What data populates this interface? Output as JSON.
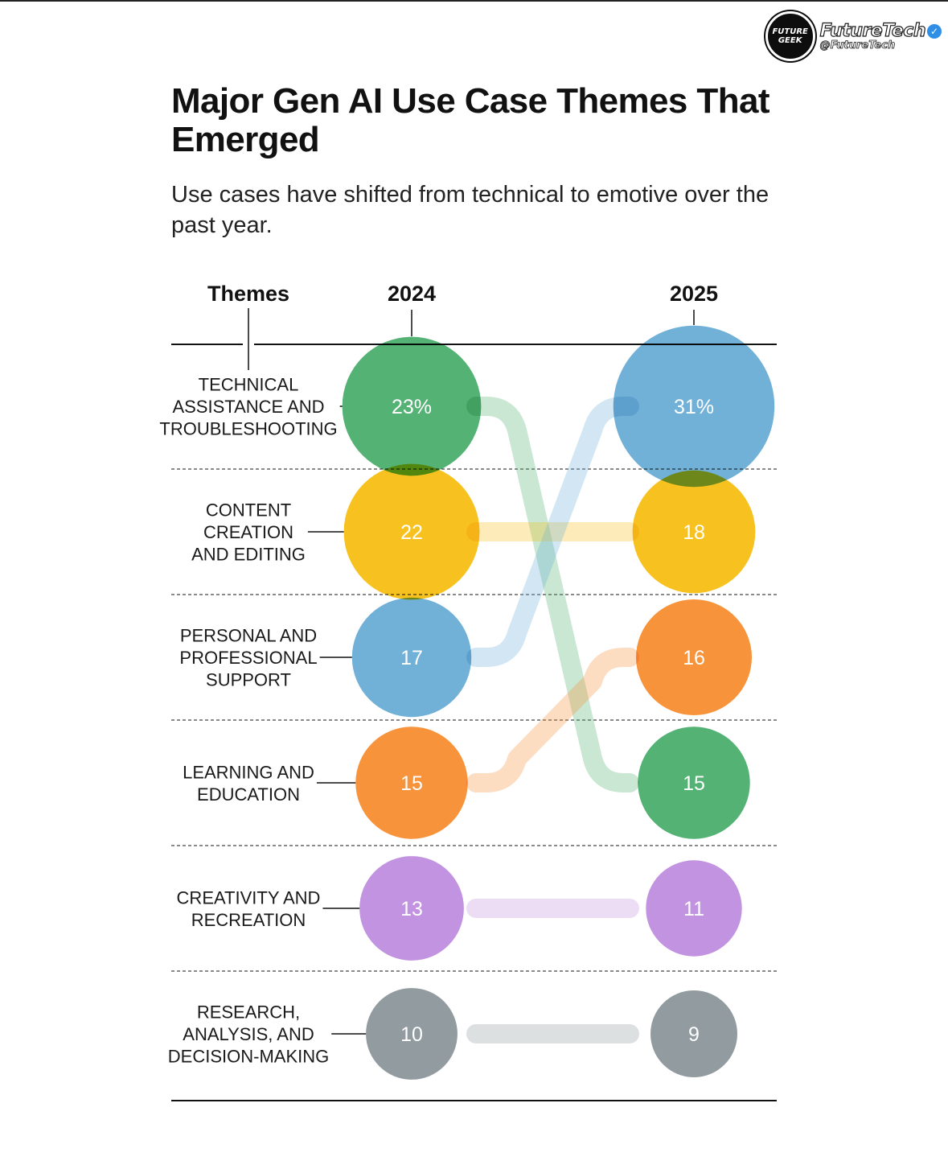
{
  "brand": {
    "logo_text": "FUTURE\nGEEK",
    "name": "FutureTech",
    "handle": "@FutureTech",
    "verified_icon": "check-badge-icon"
  },
  "title": "Major Gen AI Use Case Themes That Emerged",
  "subtitle": "Use cases have shifted from technical to emotive over the past year.",
  "chart_data": {
    "type": "bump",
    "columns": {
      "themes": "Themes",
      "left": "2024",
      "right": "2025"
    },
    "unit": "%",
    "series": [
      {
        "label_lines": [
          "TECHNICAL",
          "ASSISTANCE AND",
          "TROUBLESHOOTING"
        ],
        "color": "#4caf6e",
        "value_2024": 23,
        "value_2025": 15,
        "display_2024": "23%",
        "display_2025": "15",
        "rank_2024": 1,
        "rank_2025": 4
      },
      {
        "label_lines": [
          "CONTENT",
          "CREATION",
          "AND EDITING"
        ],
        "color": "#f7bf16",
        "value_2024": 22,
        "value_2025": 18,
        "display_2024": "22",
        "display_2025": "18",
        "rank_2024": 2,
        "rank_2025": 2
      },
      {
        "label_lines": [
          "PERSONAL AND",
          "PROFESSIONAL",
          "SUPPORT"
        ],
        "color": "#6baed6",
        "value_2024": 17,
        "value_2025": 31,
        "display_2024": "17",
        "display_2025": "31%",
        "rank_2024": 3,
        "rank_2025": 1
      },
      {
        "label_lines": [
          "LEARNING AND",
          "EDUCATION"
        ],
        "color": "#f78f33",
        "value_2024": 15,
        "value_2025": 16,
        "display_2024": "15",
        "display_2025": "16",
        "rank_2024": 4,
        "rank_2025": 3
      },
      {
        "label_lines": [
          "CREATIVITY AND",
          "RECREATION"
        ],
        "color": "#c08fdf",
        "value_2024": 13,
        "value_2025": 11,
        "display_2024": "13",
        "display_2025": "11",
        "rank_2024": 5,
        "rank_2025": 5
      },
      {
        "label_lines": [
          "RESEARCH,",
          "ANALYSIS, AND",
          "DECISION-MAKING"
        ],
        "color": "#8d979c",
        "value_2024": 10,
        "value_2025": 9,
        "display_2024": "10",
        "display_2025": "9",
        "rank_2024": 6,
        "rank_2025": 6
      }
    ]
  }
}
